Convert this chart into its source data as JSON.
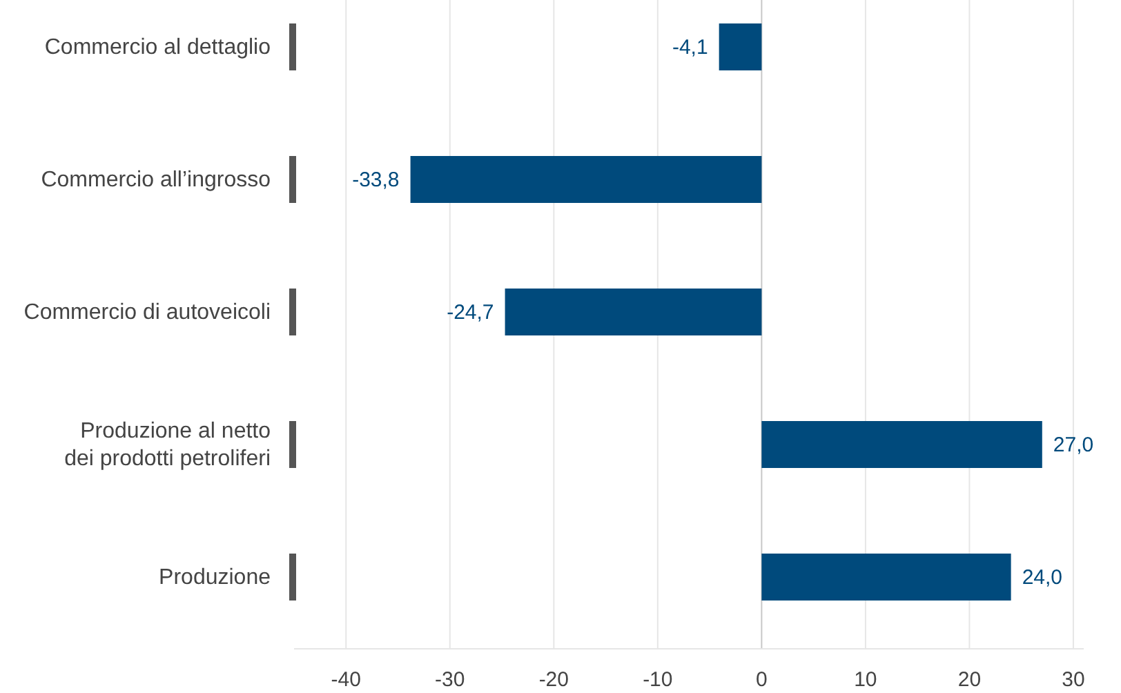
{
  "chart_data": {
    "type": "bar",
    "orientation": "horizontal",
    "categories": [
      "Commercio al dettaglio",
      "Commercio all’ingrosso",
      "Commercio di autoveicoli",
      "Produzione al netto\ndei prodotti petroliferi",
      "Produzione"
    ],
    "values": [
      -4.1,
      -33.8,
      -24.7,
      27.0,
      24.0
    ],
    "value_labels": [
      "-4,1",
      "-33,8",
      "-24,7",
      "27,0",
      "24,0"
    ],
    "color": "#004a7c",
    "xlim": [
      -45,
      31
    ],
    "xticks": [
      -40,
      -30,
      -20,
      -10,
      0,
      10,
      20,
      30
    ],
    "grid": "x"
  }
}
